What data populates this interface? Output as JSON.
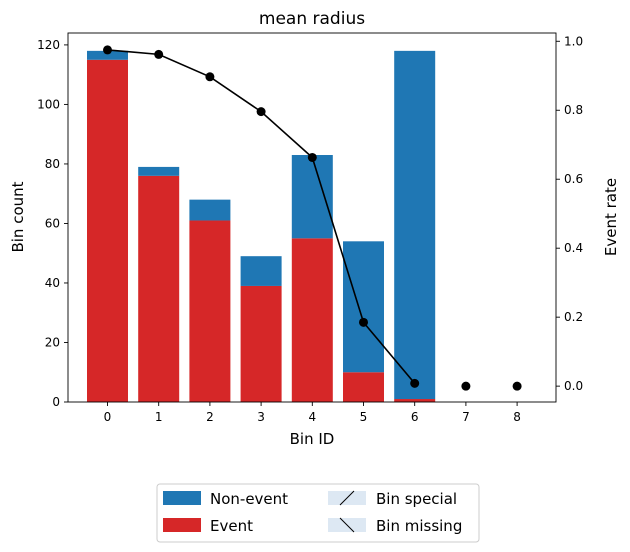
{
  "chart_data": {
    "type": "bar",
    "title": "mean radius",
    "xlabel": "Bin ID",
    "ylabel": "Bin count",
    "y2label": "Event rate",
    "categories": [
      "0",
      "1",
      "2",
      "3",
      "4",
      "5",
      "6",
      "7",
      "8"
    ],
    "series": [
      {
        "name": "Non-event",
        "kind": "stacked-bar",
        "values": [
          3,
          3,
          7,
          10,
          28,
          44,
          117,
          0,
          0
        ]
      },
      {
        "name": "Event",
        "kind": "stacked-bar",
        "values": [
          115,
          76,
          61,
          39,
          55,
          10,
          1,
          0,
          0
        ]
      },
      {
        "kind": "line",
        "axis": "right",
        "values": [
          0.975,
          0.962,
          0.897,
          0.796,
          0.663,
          0.185,
          0.008,
          0.0,
          0.0
        ]
      }
    ],
    "ylim": [
      0,
      124
    ],
    "y_ticks": [
      0,
      20,
      40,
      60,
      80,
      100,
      120
    ],
    "y2lim": [
      -0.046,
      1.024
    ],
    "y2_ticks": [
      "0.0",
      "0.2",
      "0.4",
      "0.6",
      "0.8",
      "1.0"
    ],
    "legend": {
      "placement": "bottom-center",
      "entries": [
        "Non-event",
        "Event",
        "Bin special",
        "Bin missing"
      ]
    },
    "grid": false,
    "colors": {
      "non_event": "#1f77b4",
      "event": "#d62728",
      "line": "#000000",
      "special": "#dde8f3"
    }
  }
}
